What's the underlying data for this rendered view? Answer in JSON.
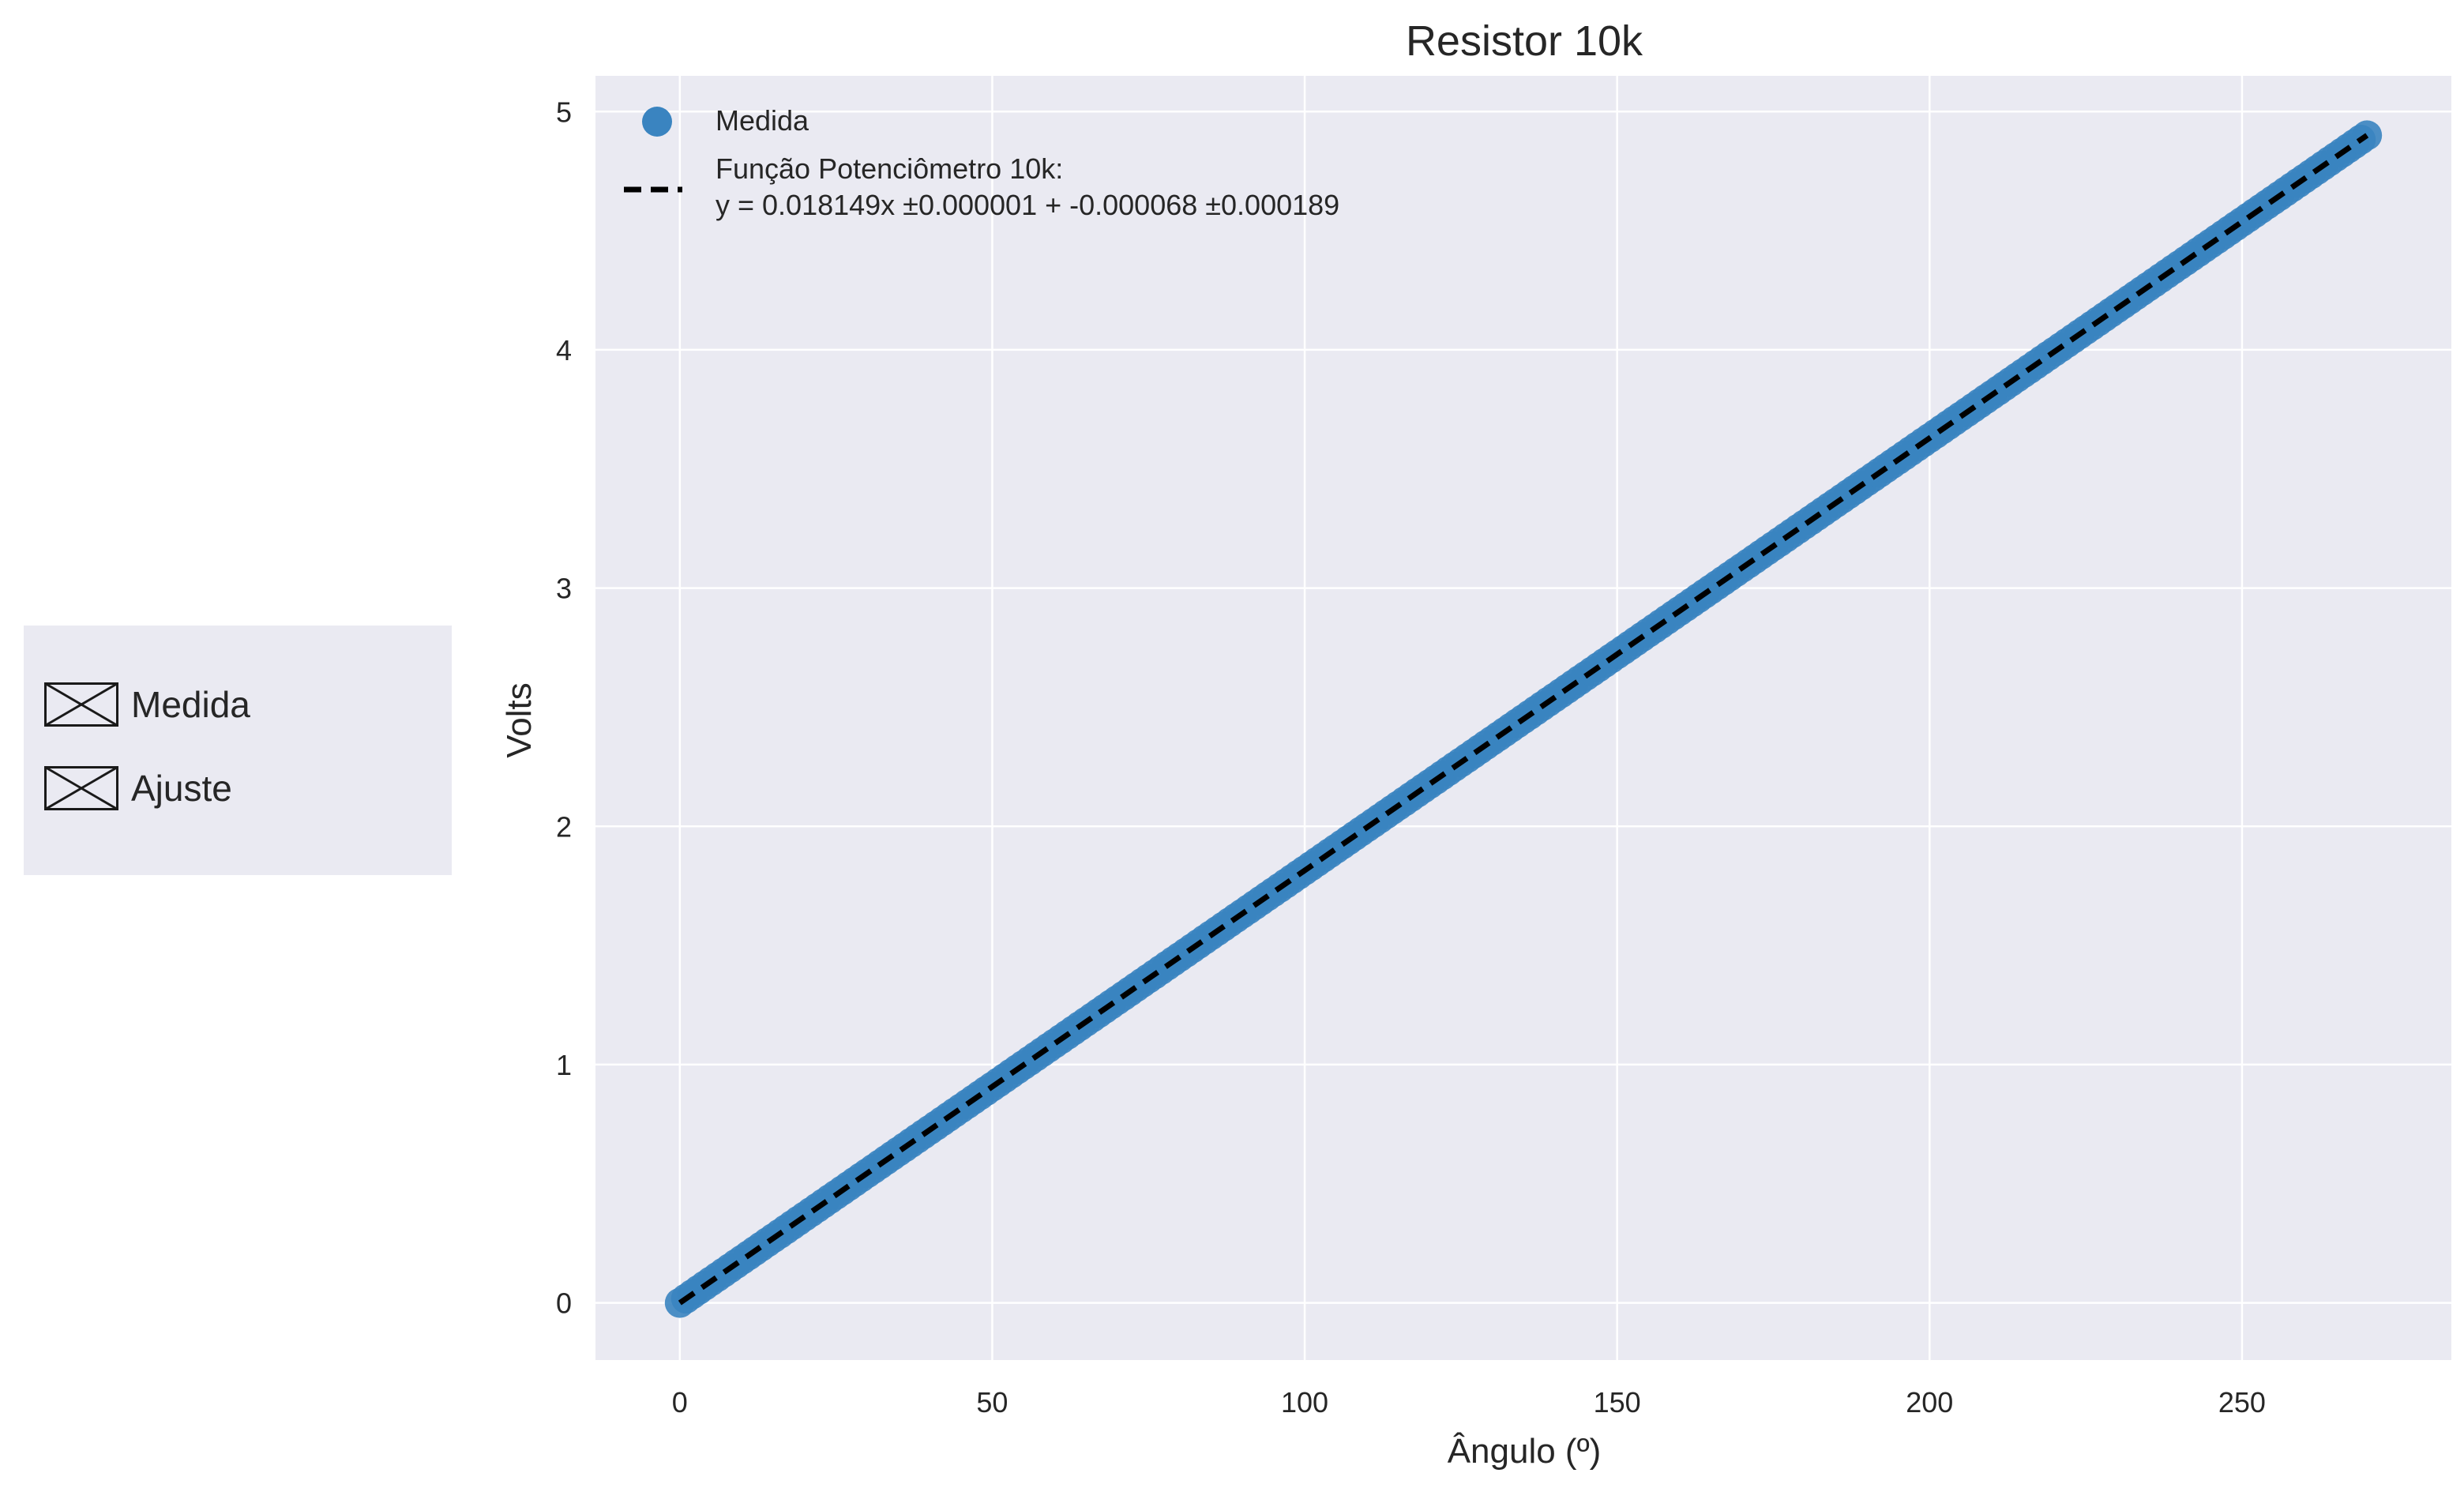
{
  "colors": {
    "plot_background": "#eaeaf2",
    "grid": "#ffffff",
    "points": "#3a84c0",
    "fit_line": "#000000",
    "text": "#262626"
  },
  "side_legend": {
    "items": [
      {
        "label": "Medida",
        "icon": "broken-image-icon"
      },
      {
        "label": "Ajuste",
        "icon": "broken-image-icon"
      }
    ]
  },
  "chart_data": {
    "type": "scatter",
    "title": "Resistor 10k",
    "xlabel": "Ângulo (º)",
    "ylabel": "Volts",
    "xlim": [
      -13.5,
      283.5
    ],
    "ylim": [
      -0.24,
      5.15
    ],
    "xticks": [
      0,
      50,
      100,
      150,
      200,
      250
    ],
    "yticks": [
      0,
      1,
      2,
      3,
      4,
      5
    ],
    "grid": true,
    "legend_position": "upper-left",
    "series": [
      {
        "name": "Medida",
        "kind": "scatter",
        "x_start": 0,
        "x_end": 270,
        "x_step": 1,
        "slope": 0.018149,
        "intercept": -6.8e-05
      },
      {
        "name": "Função Potenciômetro 10k:",
        "name_line2": "y = 0.018149x ±0.000001 + -0.000068 ±0.000189",
        "kind": "line",
        "style": "dashed",
        "x": [
          0,
          270
        ],
        "slope": 0.018149,
        "intercept": -6.8e-05
      }
    ]
  }
}
